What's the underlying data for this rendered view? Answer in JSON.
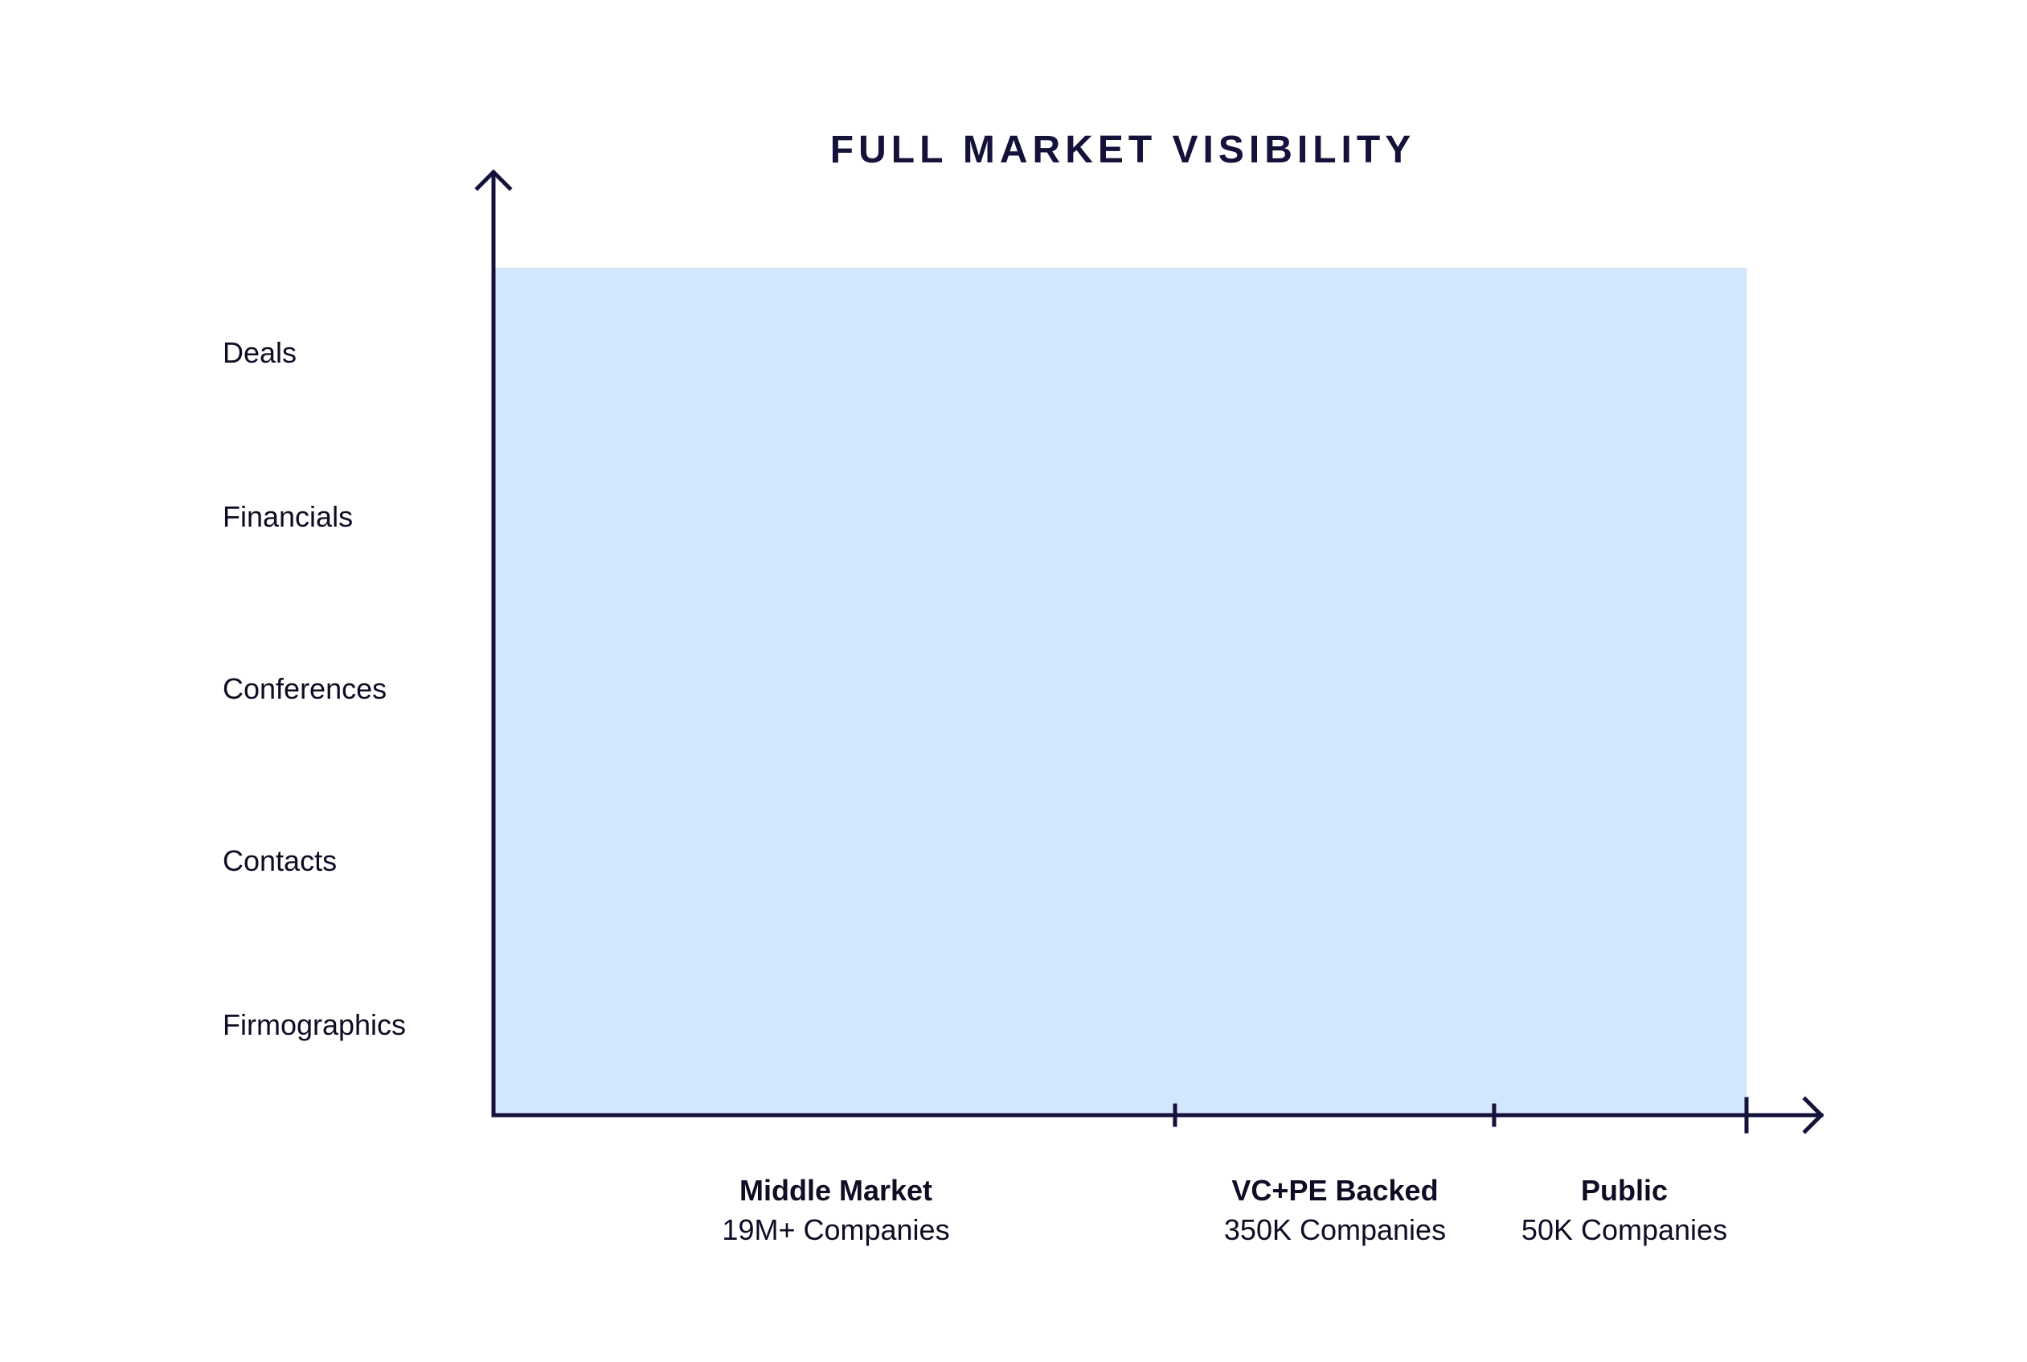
{
  "chart_data": {
    "type": "area",
    "title": "FULL MARKET VISIBILITY",
    "rows": [
      "Deals",
      "Financials",
      "Conferences",
      "Contacts",
      "Firmographics"
    ],
    "segments": [
      {
        "name": "Middle Market",
        "count": "19M+ Companies"
      },
      {
        "name": "VC+PE Backed",
        "count": "350K Companies"
      },
      {
        "name": "Public",
        "count": "50K Companies"
      }
    ],
    "coverage": {
      "rows_covered": [
        "Deals",
        "Financials",
        "Conferences",
        "Contacts",
        "Firmographics"
      ],
      "segments_covered": [
        "Middle Market",
        "VC+PE Backed",
        "Public"
      ]
    },
    "colors": {
      "fill": "#d2e6fc",
      "axis": "#14123a",
      "text": "#0e0d24"
    }
  }
}
